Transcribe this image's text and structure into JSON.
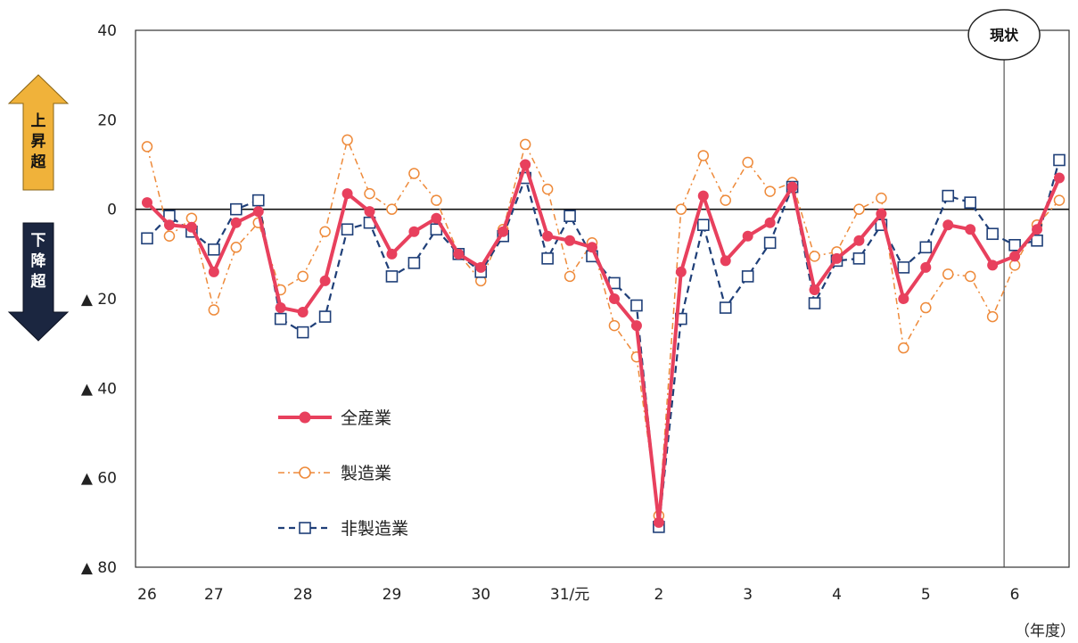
{
  "chart_data": {
    "type": "line",
    "title": "",
    "xlabel": "（年度）",
    "ylabel": "",
    "ylim": [
      -80,
      40
    ],
    "yticks": [
      {
        "value": 40,
        "label": "40"
      },
      {
        "value": 20,
        "label": "20"
      },
      {
        "value": 0,
        "label": "0"
      },
      {
        "value": -20,
        "label": "▲ 20"
      },
      {
        "value": -40,
        "label": "▲ 40"
      },
      {
        "value": -60,
        "label": "▲ 60"
      },
      {
        "value": -80,
        "label": "▲ 80"
      }
    ],
    "xticks": [
      {
        "index": 0,
        "label": "26"
      },
      {
        "index": 3,
        "label": "27"
      },
      {
        "index": 7,
        "label": "28"
      },
      {
        "index": 11,
        "label": "29"
      },
      {
        "index": 15,
        "label": "30"
      },
      {
        "index": 19,
        "label": "31/元"
      },
      {
        "index": 23,
        "label": "2"
      },
      {
        "index": 27,
        "label": "3"
      },
      {
        "index": 31,
        "label": "4"
      },
      {
        "index": 35,
        "label": "5"
      },
      {
        "index": 39,
        "label": "6"
      }
    ],
    "period_count": 42,
    "current_index": 39,
    "current_label": "現状",
    "series": [
      {
        "name": "全産業",
        "color": "#e8405d",
        "style": "solid-filled-circle",
        "values": [
          1.5,
          -3.5,
          -4,
          -14,
          -3,
          -0.5,
          -22,
          -23,
          -16,
          3.5,
          -0.5,
          -10,
          -5,
          -2,
          -10,
          -13,
          -5,
          10,
          -6,
          -7,
          -8.5,
          -20,
          -26,
          -70,
          -14,
          3,
          -11.5,
          -6,
          -3,
          5,
          -18,
          -11,
          -7,
          -1,
          -20,
          -13,
          -3.5,
          -4.5,
          -12.5,
          -10.5,
          -4.5,
          7
        ]
      },
      {
        "name": "製造業",
        "color": "#ee8a3a",
        "style": "dashdot-open-circle",
        "values": [
          14,
          -6,
          -2,
          -22.5,
          -8.5,
          -3,
          -18,
          -15,
          -5,
          15.5,
          3.5,
          0,
          8,
          2,
          -10,
          -16,
          -4.5,
          14.5,
          4.5,
          -15,
          -7.5,
          -26,
          -33,
          -68.5,
          0,
          12,
          2,
          10.5,
          4,
          6,
          -10.5,
          -9.5,
          0,
          2.5,
          -31,
          -22,
          -14.5,
          -15,
          -24,
          -12.5,
          -3.5,
          2
        ]
      },
      {
        "name": "非製造業",
        "color": "#1f3f78",
        "style": "dashed-open-square",
        "values": [
          -6.5,
          -1.5,
          -5,
          -9,
          0,
          2,
          -24.5,
          -27.5,
          -24,
          -4.5,
          -3,
          -15,
          -12,
          -4.5,
          -10,
          -14,
          -6,
          7,
          -11,
          -1.5,
          -10.5,
          -16.5,
          -21.5,
          -71,
          -24.5,
          -3.5,
          -22,
          -15,
          -7.5,
          5,
          -21,
          -11.5,
          -11,
          -3.5,
          -13,
          -8.5,
          3,
          1.5,
          -5.5,
          -8,
          -7,
          11
        ]
      }
    ],
    "legend_placement": "lower-left",
    "grid": false
  },
  "arrows": {
    "up_label": [
      "上",
      "昇",
      "超"
    ],
    "up_color": "#f0b23a",
    "down_label": [
      "下",
      "降",
      "超"
    ],
    "down_color": "#1b2640"
  }
}
